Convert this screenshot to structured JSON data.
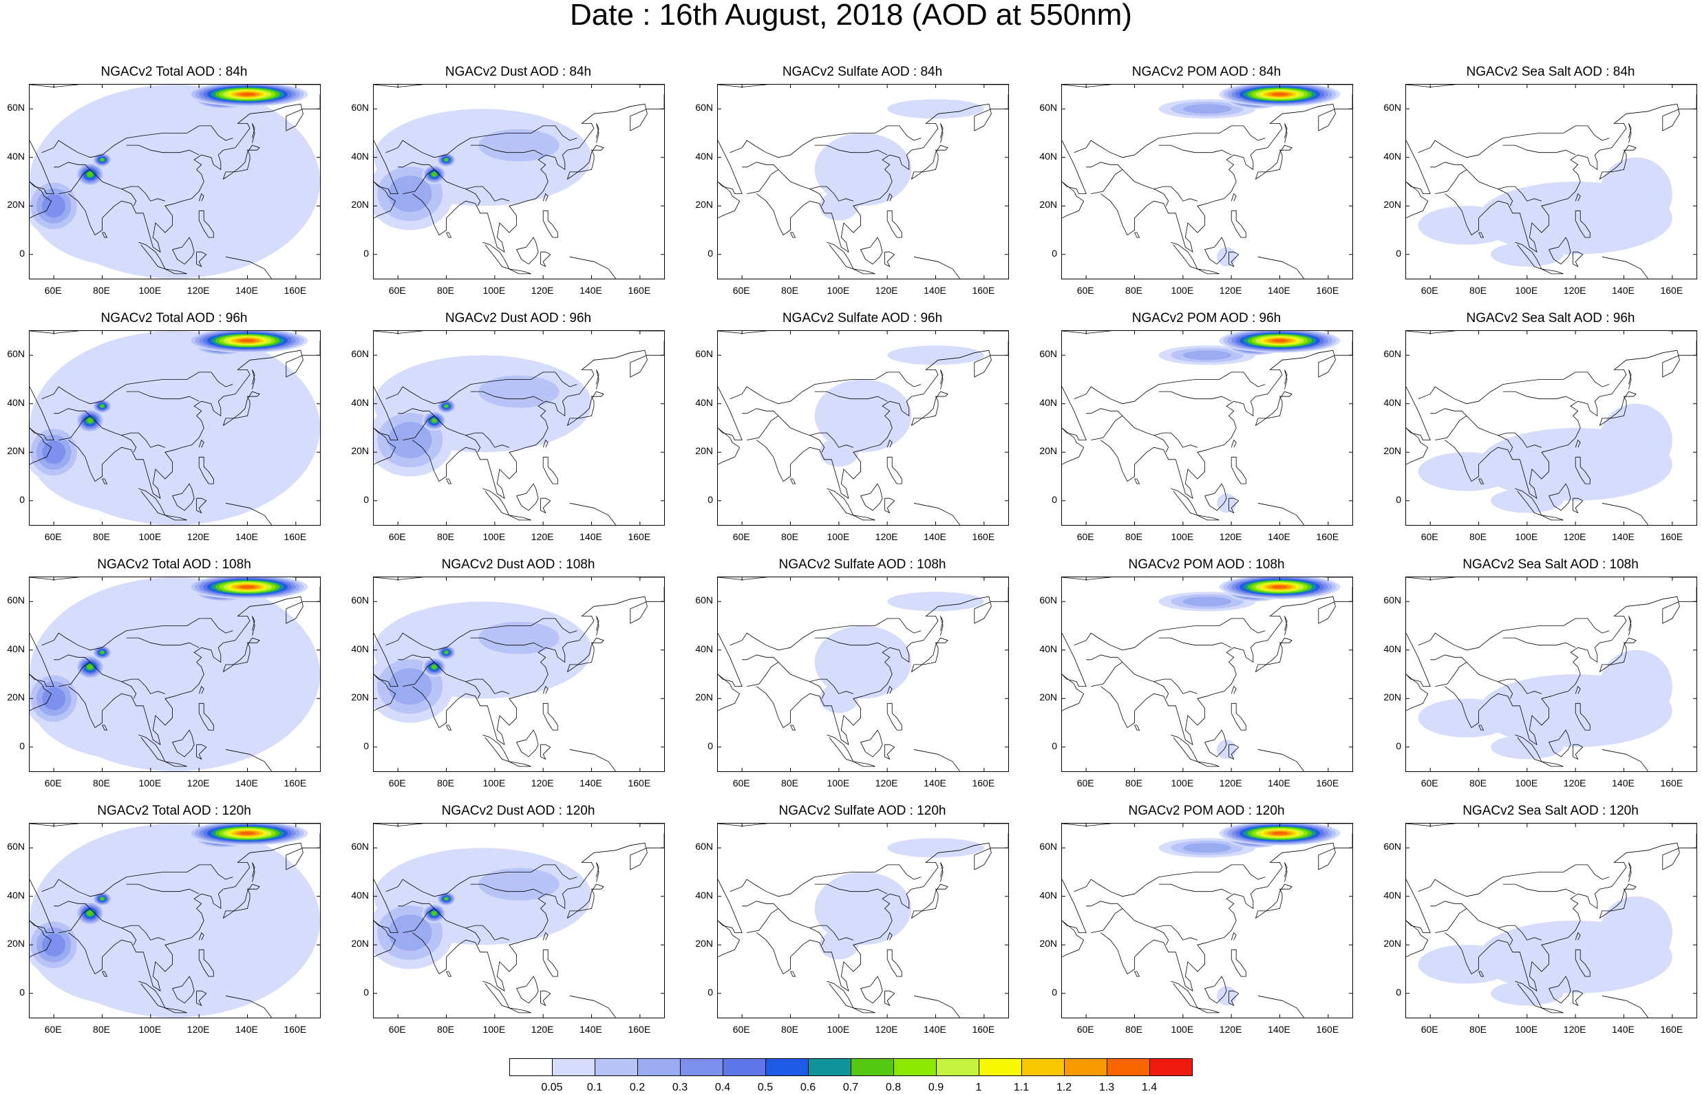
{
  "title": "Date : 16th August, 2018 (AOD at 550nm)",
  "map": {
    "lon_range": [
      50,
      170
    ],
    "lat_range": [
      -10,
      70
    ],
    "lat_ticks": [
      "0",
      "20N",
      "40N",
      "60N"
    ],
    "lon_ticks": [
      "60E",
      "80E",
      "100E",
      "120E",
      "140E",
      "160E"
    ]
  },
  "rows": [
    {
      "hour": "84h",
      "panels": [
        "NGACv2 Total AOD : 84h",
        "NGACv2 Dust AOD : 84h",
        "NGACv2 Sulfate AOD : 84h",
        "NGACv2 POM AOD : 84h",
        "NGACv2 Sea Salt AOD : 84h"
      ]
    },
    {
      "hour": "96h",
      "panels": [
        "NGACv2 Total AOD : 96h",
        "NGACv2 Dust AOD : 96h",
        "NGACv2 Sulfate AOD : 96h",
        "NGACv2 POM AOD : 96h",
        "NGACv2 Sea Salt AOD : 96h"
      ]
    },
    {
      "hour": "108h",
      "panels": [
        "NGACv2 Total AOD : 108h",
        "NGACv2 Dust AOD : 108h",
        "NGACv2 Sulfate AOD : 108h",
        "NGACv2 POM AOD : 108h",
        "NGACv2 Sea Salt AOD : 108h"
      ]
    },
    {
      "hour": "120h",
      "panels": [
        "NGACv2 Total AOD : 120h",
        "NGACv2 Dust AOD : 120h",
        "NGACv2 Sulfate AOD : 120h",
        "NGACv2 POM AOD : 120h",
        "NGACv2 Sea Salt  AOD : 120h"
      ]
    }
  ],
  "colorbar": {
    "labels": [
      "0.05",
      "0.1",
      "0.2",
      "0.3",
      "0.4",
      "0.5",
      "0.6",
      "0.7",
      "0.8",
      "0.9",
      "1",
      "1.1",
      "1.2",
      "1.3",
      "1.4"
    ],
    "colors": [
      "#ffffff",
      "#d6dcfb",
      "#b8c4f7",
      "#9aabf2",
      "#7d90ed",
      "#5f76e8",
      "#1d5ae6",
      "#12959a",
      "#55c814",
      "#8ce800",
      "#c4f23e",
      "#f7f700",
      "#f7c800",
      "#f79a00",
      "#f76400",
      "#f01a0e"
    ]
  },
  "legend_order": [
    "Total",
    "Dust",
    "Sulfate",
    "POM",
    "Sea Salt"
  ]
}
